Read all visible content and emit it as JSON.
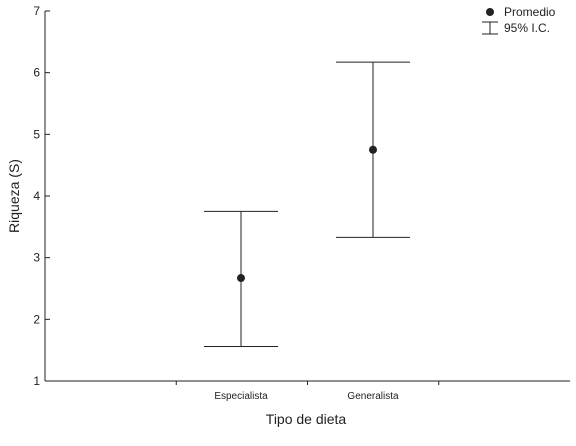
{
  "chart_data": {
    "type": "scatter",
    "title": "",
    "xlabel": "Tipo de dieta",
    "ylabel": "Riqueza (S)",
    "categories": [
      "Especialista",
      "Generalista"
    ],
    "series": [
      {
        "name": "Promedio",
        "values": [
          2.67,
          4.75
        ],
        "ci_lower": [
          1.56,
          3.33
        ],
        "ci_upper": [
          3.75,
          6.17
        ]
      }
    ],
    "ylim": [
      1,
      7
    ],
    "yticks": [
      "1",
      "2",
      "3",
      "4",
      "5",
      "6",
      "7"
    ],
    "grid": false,
    "legend": {
      "placement": "top-right",
      "mean_label": "Promedio",
      "ci_label": "95% I.C."
    },
    "colors": {
      "marks": "#222222",
      "axis": "#222222"
    }
  }
}
